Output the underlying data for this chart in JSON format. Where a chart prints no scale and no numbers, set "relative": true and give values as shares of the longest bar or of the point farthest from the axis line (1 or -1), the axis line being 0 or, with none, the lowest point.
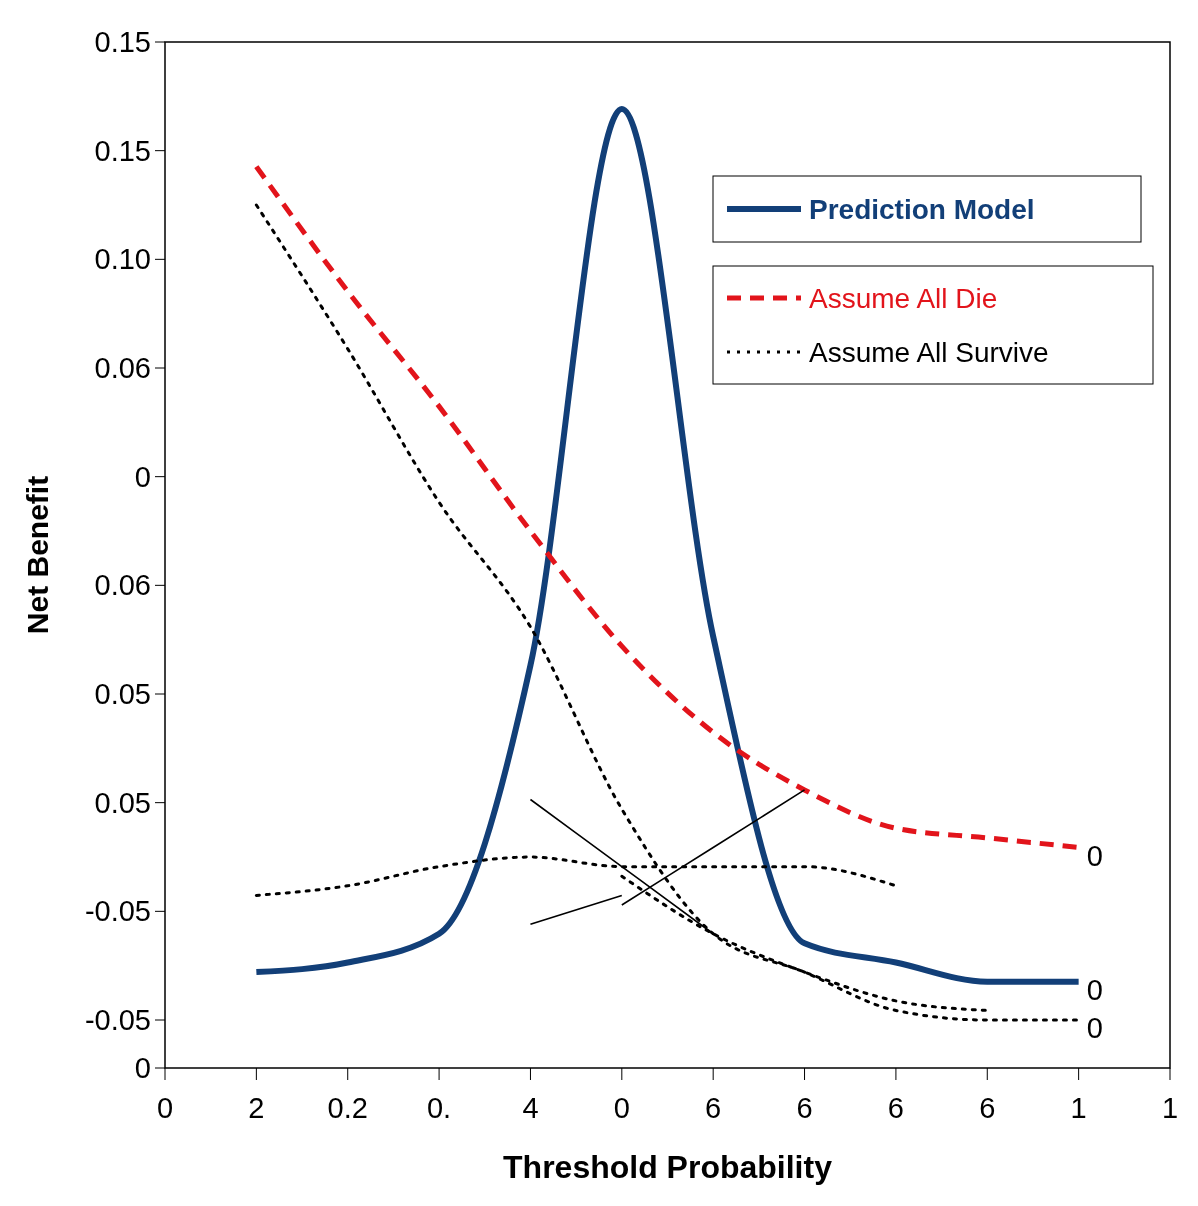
{
  "chart_data": {
    "type": "line",
    "xlabel": "Threshold Probability",
    "ylabel": "Net Benefit",
    "relative": true,
    "categories": [
      "0",
      "2",
      "0.2",
      "0.",
      "4",
      "0",
      "6",
      "6",
      "6",
      "6",
      "1",
      "1"
    ],
    "grid": false,
    "legend": "top right",
    "marker": "none",
    "series": [
      {
        "name": "Prediction Model",
        "color": "#123f78",
        "line_style": "solid",
        "values": [
          null,
          0.1,
          0.11,
          0.14,
          0.42,
          1.0,
          0.45,
          0.13,
          0.11,
          0.09,
          0.09,
          null
        ]
      },
      {
        "name": "Assume All Die",
        "color": "#e2141b",
        "line_style": "dashed",
        "values": [
          null,
          0.94,
          0.81,
          0.69,
          0.56,
          0.44,
          0.35,
          0.29,
          0.25,
          0.24,
          0.23,
          null
        ]
      },
      {
        "name": "Assume All Survive",
        "color": "#000000",
        "line_style": "dotted",
        "values": [
          null,
          0.9,
          0.75,
          0.59,
          0.46,
          0.27,
          0.14,
          0.1,
          0.06,
          0.05,
          0.05,
          null
        ]
      },
      {
        "color": "#000000",
        "line_style": "dotted",
        "values": [
          null,
          0.18,
          0.19,
          0.21,
          0.22,
          0.21,
          0.21,
          0.21,
          0.19,
          null,
          null,
          null
        ]
      },
      {
        "color": "#000000",
        "line_style": "dotted",
        "values": [
          null,
          null,
          null,
          null,
          null,
          0.2,
          0.14,
          0.1,
          0.07,
          0.06,
          null,
          null
        ]
      },
      {
        "color": "#000000",
        "line_style": "solid",
        "values": [
          null,
          null,
          null,
          null,
          0.28,
          0.21,
          0.14,
          null,
          null,
          null,
          null,
          null
        ]
      },
      {
        "color": "#000000",
        "line_style": "solid",
        "values": [
          null,
          null,
          null,
          null,
          0.15,
          0.18,
          null,
          null,
          null,
          null,
          null,
          null
        ]
      },
      {
        "color": "#000000",
        "line_style": "solid",
        "values": [
          null,
          null,
          null,
          null,
          null,
          0.17,
          0.23,
          0.29,
          null,
          null,
          null,
          null
        ]
      }
    ],
    "annotations": [
      "0.15",
      "0.15",
      "0.10",
      "0.06",
      "0",
      "0.06",
      "0.05",
      "0.05",
      "-0.05",
      "-0.05",
      "0",
      {
        "text": "0",
        "x": "1",
        "y": 0.23
      },
      {
        "text": "0",
        "x": "1",
        "y": 0.09
      },
      {
        "text": "0",
        "x": "1",
        "y": 0.05
      }
    ]
  }
}
